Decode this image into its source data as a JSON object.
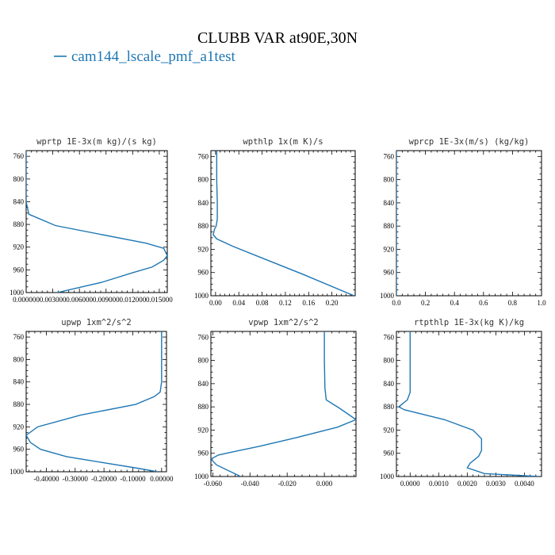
{
  "title": "CLUBB VAR at90E,30N",
  "legend": {
    "label": "cam144_lscale_pmf_a1test",
    "color": "#1f77b4"
  },
  "chart_data": [
    {
      "type": "line",
      "title": "wprtp  1E-3x(m kg)/(s kg)",
      "xlim": [
        0,
        0.0159
      ],
      "ylim": [
        1000,
        750
      ],
      "xticks": [
        0,
        0.003,
        0.006,
        0.009,
        0.012,
        0.015
      ],
      "xtick_labels": [
        "0.000000",
        "0.003000",
        "0.006000",
        "0.009000",
        "0.012000",
        "0.015000"
      ],
      "yticks": [
        760,
        800,
        840,
        880,
        920,
        960,
        1000
      ],
      "ytick_labels": [
        "760",
        "800",
        "840",
        "880",
        "920",
        "960",
        "1000"
      ],
      "series": [
        {
          "x": [
            0,
            0,
            0,
            0.0003,
            0.0033,
            0.0135,
            0.0155,
            0.0159,
            0.0155,
            0.0142,
            0.012,
            0.0085,
            0.0035
          ],
          "y": [
            750,
            800,
            840,
            862,
            882,
            913,
            922,
            935,
            943,
            955,
            965,
            982,
            1000
          ]
        }
      ]
    },
    {
      "type": "line",
      "title": "wpthlp  1x(m K)/s",
      "xlim": [
        -0.008,
        0.24
      ],
      "ylim": [
        1000,
        750
      ],
      "xticks": [
        0,
        0.04,
        0.08,
        0.12,
        0.16,
        0.2
      ],
      "xtick_labels": [
        "0.00",
        "0.04",
        "0.08",
        "0.12",
        "0.16",
        "0.20"
      ],
      "yticks": [
        760,
        800,
        840,
        880,
        920,
        960,
        1000
      ],
      "ytick_labels": [
        "760",
        "800",
        "840",
        "880",
        "920",
        "960",
        "1000"
      ],
      "series": [
        {
          "x": [
            0.002,
            0.002,
            0.003,
            0.003,
            0.001,
            -0.002,
            -0.004,
            0.002,
            0.03,
            0.08,
            0.15,
            0.238
          ],
          "y": [
            750,
            800,
            840,
            868,
            880,
            886,
            895,
            902,
            915,
            935,
            963,
            1000
          ]
        }
      ]
    },
    {
      "type": "line",
      "title": "wprcp  1E-3x(m/s) (kg/kg)",
      "xlim": [
        0,
        1
      ],
      "ylim": [
        1000,
        750
      ],
      "xticks": [
        0,
        0.2,
        0.4,
        0.6,
        0.8,
        1.0
      ],
      "xtick_labels": [
        "0.0",
        "0.2",
        "0.4",
        "0.6",
        "0.8",
        "1.0"
      ],
      "yticks": [
        760,
        800,
        840,
        880,
        920,
        960,
        1000
      ],
      "ytick_labels": [
        "760",
        "800",
        "840",
        "880",
        "920",
        "960",
        "1000"
      ],
      "series": [
        {
          "x": [
            0,
            0
          ],
          "y": [
            750,
            1000
          ]
        }
      ]
    },
    {
      "type": "line",
      "title": "upwp  1xm^2/s^2",
      "xlim": [
        -0.47,
        0.017
      ],
      "ylim": [
        1000,
        750
      ],
      "xticks": [
        -0.4,
        -0.3,
        -0.2,
        -0.1,
        0
      ],
      "xtick_labels": [
        "-0.40000",
        "-0.30000",
        "-0.20000",
        "-0.10000",
        "0.00000"
      ],
      "yticks": [
        760,
        800,
        840,
        880,
        920,
        960,
        1000
      ],
      "ytick_labels": [
        "760",
        "800",
        "840",
        "880",
        "920",
        "960",
        "1000"
      ],
      "series": [
        {
          "x": [
            0,
            0,
            0,
            -0.005,
            -0.025,
            -0.09,
            -0.28,
            -0.43,
            -0.47,
            -0.455,
            -0.42,
            -0.33,
            -0.2,
            -0.08,
            -0.015
          ],
          "y": [
            750,
            800,
            840,
            858,
            866,
            880,
            899,
            920,
            935,
            948,
            960,
            973,
            984,
            994,
            1000
          ]
        }
      ]
    },
    {
      "type": "line",
      "title": "vpwp  1xm^2/s^2",
      "xlim": [
        -0.061,
        0.017
      ],
      "ylim": [
        1000,
        750
      ],
      "xticks": [
        -0.06,
        -0.04,
        -0.02,
        0
      ],
      "xtick_labels": [
        "-0.060",
        "-0.040",
        "-0.020",
        "0.000"
      ],
      "yticks": [
        760,
        800,
        840,
        880,
        920,
        960,
        1000
      ],
      "ytick_labels": [
        "760",
        "800",
        "840",
        "880",
        "920",
        "960",
        "1000"
      ],
      "series": [
        {
          "x": [
            0,
            0,
            0.0003,
            0.001,
            0.008,
            0.017,
            0.007,
            -0.015,
            -0.035,
            -0.05,
            -0.057,
            -0.061,
            -0.058,
            -0.045
          ],
          "y": [
            750,
            800,
            848,
            868,
            882,
            902,
            915,
            933,
            948,
            958,
            963,
            970,
            980,
            1000
          ]
        }
      ]
    },
    {
      "type": "line",
      "title": "rtpthlp  1E-3x(kg K)/kg",
      "xlim": [
        -0.00048,
        0.0046
      ],
      "ylim": [
        1000,
        750
      ],
      "xticks": [
        0,
        0.001,
        0.002,
        0.003,
        0.004
      ],
      "xtick_labels": [
        "0.0000",
        "0.0010",
        "0.0020",
        "0.0030",
        "0.0040"
      ],
      "yticks": [
        760,
        800,
        840,
        880,
        920,
        960,
        1000
      ],
      "ytick_labels": [
        "760",
        "800",
        "840",
        "880",
        "920",
        "960",
        "1000"
      ],
      "series": [
        {
          "x": [
            0,
            0,
            0,
            -0.0001,
            -0.0004,
            -0.0002,
            0.0012,
            0.0022,
            0.0025,
            0.0025,
            0.0024,
            0.0021,
            0.002,
            0.0026,
            0.0045
          ],
          "y": [
            750,
            800,
            855,
            868,
            880,
            885,
            902,
            920,
            935,
            955,
            965,
            977,
            985,
            995,
            1000
          ]
        }
      ]
    }
  ]
}
